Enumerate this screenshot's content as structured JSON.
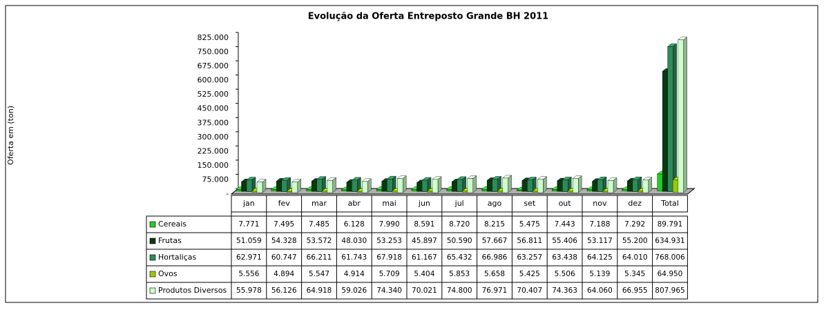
{
  "chart_data": {
    "type": "bar3d",
    "title": "Evolução da Oferta Entreposto Grande BH 2011",
    "y_label": "Oferta em (ton)",
    "categories": [
      "jan",
      "fev",
      "mar",
      "abr",
      "mai",
      "jun",
      "jul",
      "ago",
      "set",
      "out",
      "nov",
      "dez",
      "Total"
    ],
    "ylim": [
      0,
      825000
    ],
    "yticks": [
      {
        "value": 0,
        "label": "-"
      },
      {
        "value": 75000,
        "label": "75.000"
      },
      {
        "value": 150000,
        "label": "150.000"
      },
      {
        "value": 225000,
        "label": "225.000"
      },
      {
        "value": 300000,
        "label": "300.000"
      },
      {
        "value": 375000,
        "label": "375.000"
      },
      {
        "value": 450000,
        "label": "450.000"
      },
      {
        "value": 525000,
        "label": "525.000"
      },
      {
        "value": 600000,
        "label": "600.000"
      },
      {
        "value": 675000,
        "label": "675.000"
      },
      {
        "value": 750000,
        "label": "750.000"
      },
      {
        "value": 825000,
        "label": "825.000"
      }
    ],
    "series": [
      {
        "name": "Cereais",
        "color": "#22cc22",
        "values": [
          7771,
          7495,
          7485,
          6128,
          7990,
          8591,
          8720,
          8215,
          5475,
          7443,
          7188,
          7292,
          89791
        ],
        "value_labels": [
          "7.771",
          "7.495",
          "7.485",
          "6.128",
          "7.990",
          "8.591",
          "8.720",
          "8.215",
          "5.475",
          "7.443",
          "7.188",
          "7.292",
          "89.791"
        ]
      },
      {
        "name": "Frutas",
        "color": "#083a10",
        "values": [
          51059,
          54328,
          53572,
          48030,
          53253,
          45897,
          50590,
          57667,
          56811,
          55406,
          53117,
          55200,
          634931
        ],
        "value_labels": [
          "51.059",
          "54.328",
          "53.572",
          "48.030",
          "53.253",
          "45.897",
          "50.590",
          "57.667",
          "56.811",
          "55.406",
          "53.117",
          "55.200",
          "634.931"
        ]
      },
      {
        "name": "Hortaliças",
        "color": "#2e8a5a",
        "values": [
          62971,
          60747,
          66211,
          61743,
          67918,
          61167,
          65432,
          66986,
          63257,
          63438,
          64125,
          64010,
          768006
        ],
        "value_labels": [
          "62.971",
          "60.747",
          "66.211",
          "61.743",
          "67.918",
          "61.167",
          "65.432",
          "66.986",
          "63.257",
          "63.438",
          "64.125",
          "64.010",
          "768.006"
        ]
      },
      {
        "name": "Ovos",
        "color": "#99cc00",
        "values": [
          5556,
          4894,
          5547,
          4914,
          5709,
          5404,
          5853,
          5658,
          5425,
          5506,
          5139,
          5345,
          64950
        ],
        "value_labels": [
          "5.556",
          "4.894",
          "5.547",
          "4.914",
          "5.709",
          "5.404",
          "5.853",
          "5.658",
          "5.425",
          "5.506",
          "5.139",
          "5.345",
          "64.950"
        ]
      },
      {
        "name": "Produtos Diversos",
        "color": "#ccffcc",
        "values": [
          55978,
          56126,
          64918,
          59026,
          74340,
          70021,
          74800,
          76971,
          70407,
          74363,
          64060,
          66955,
          807965
        ],
        "value_labels": [
          "55.978",
          "56.126",
          "64.918",
          "59.026",
          "74.340",
          "70.021",
          "74.800",
          "76.971",
          "70.407",
          "74.363",
          "64.060",
          "66.955",
          "807.965"
        ]
      }
    ]
  }
}
